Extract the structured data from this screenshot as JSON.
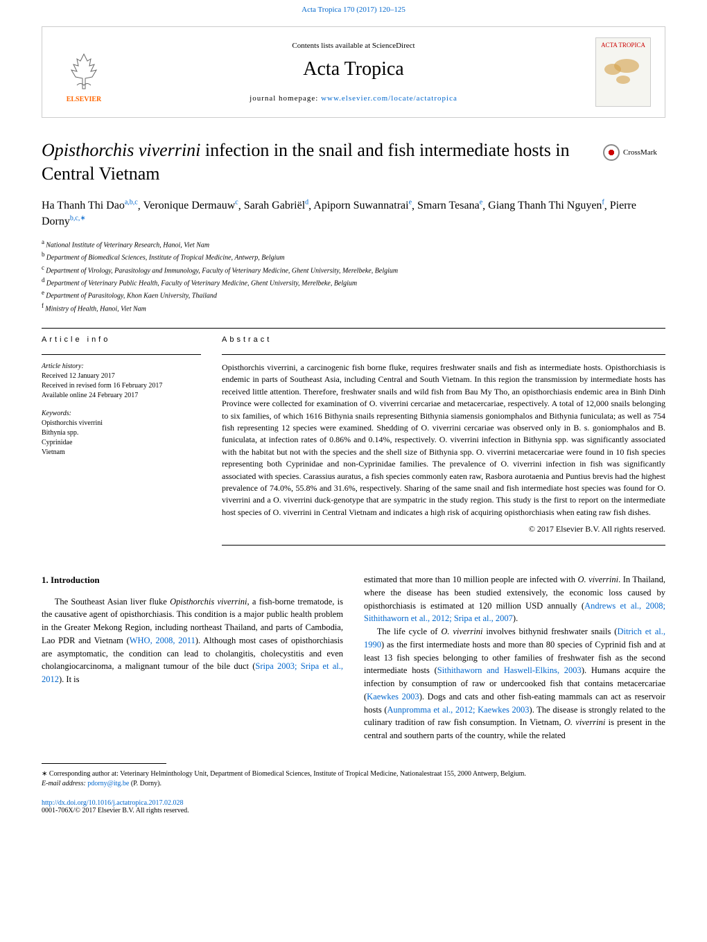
{
  "header": {
    "citation": "Acta Tropica 170 (2017) 120–125",
    "contents_available": "Contents lists available at ",
    "sciencedirect": "ScienceDirect",
    "journal_name": "Acta Tropica",
    "homepage_label": "journal homepage: ",
    "homepage_url": "www.elsevier.com/locate/actatropica",
    "elsevier_label": "ELSEVIER",
    "cover_title": "ACTA TROPICA"
  },
  "crossmark": {
    "label": "CrossMark"
  },
  "article": {
    "title_italic": "Opisthorchis viverrini",
    "title_rest": " infection in the snail and fish intermediate hosts in Central Vietnam",
    "authors_html": "Ha Thanh Thi Dao",
    "authors": [
      {
        "name": "Ha Thanh Thi Dao",
        "sup": "a,b,c"
      },
      {
        "name": "Veronique Dermauw",
        "sup": "c"
      },
      {
        "name": "Sarah Gabriël",
        "sup": "d"
      },
      {
        "name": "Apiporn Suwannatrai",
        "sup": "e"
      },
      {
        "name": "Smarn Tesana",
        "sup": "e"
      },
      {
        "name": "Giang Thanh Thi Nguyen",
        "sup": "f"
      },
      {
        "name": "Pierre Dorny",
        "sup": "b,c,∗"
      }
    ],
    "affiliations": [
      {
        "sup": "a",
        "text": "National Institute of Veterinary Research, Hanoi, Viet Nam"
      },
      {
        "sup": "b",
        "text": "Department of Biomedical Sciences, Institute of Tropical Medicine, Antwerp, Belgium"
      },
      {
        "sup": "c",
        "text": "Department of Virology, Parasitology and Immunology, Faculty of Veterinary Medicine, Ghent University, Merelbeke, Belgium"
      },
      {
        "sup": "d",
        "text": "Department of Veterinary Public Health, Faculty of Veterinary Medicine, Ghent University, Merelbeke, Belgium"
      },
      {
        "sup": "e",
        "text": "Department of Parasitology, Khon Kaen University, Thailand"
      },
      {
        "sup": "f",
        "text": "Ministry of Health, Hanoi, Viet Nam"
      }
    ]
  },
  "info": {
    "head": "article info",
    "history_label": "Article history:",
    "received": "Received 12 January 2017",
    "revised": "Received in revised form 16 February 2017",
    "online": "Available online 24 February 2017",
    "keywords_label": "Keywords:",
    "keywords": [
      "Opisthorchis viverrini",
      "Bithynia spp.",
      "Cyprinidae",
      "Vietnam"
    ]
  },
  "abstract": {
    "head": "abstract",
    "text": "Opisthorchis viverrini, a carcinogenic fish borne fluke, requires freshwater snails and fish as intermediate hosts. Opisthorchiasis is endemic in parts of Southeast Asia, including Central and South Vietnam. In this region the transmission by intermediate hosts has received little attention. Therefore, freshwater snails and wild fish from Bau My Tho, an opisthorchiasis endemic area in Binh Dinh Province were collected for examination of O. viverrini cercariae and metacercariae, respectively. A total of 12,000 snails belonging to six families, of which 1616 Bithynia snails representing Bithynia siamensis goniomphalos and Bithynia funiculata; as well as 754 fish representing 12 species were examined. Shedding of O. viverrini cercariae was observed only in B. s. goniomphalos and B. funiculata, at infection rates of 0.86% and 0.14%, respectively. O. viverrini infection in Bithynia spp. was significantly associated with the habitat but not with the species and the shell size of Bithynia spp. O. viverrini metacercariae were found in 10 fish species representing both Cyprinidae and non-Cyprinidae families. The prevalence of O. viverrini infection in fish was significantly associated with species. Carassius auratus, a fish species commonly eaten raw, Rasbora aurotaenia and Puntius brevis had the highest prevalence of 74.0%, 55.8% and 31.6%, respectively. Sharing of the same snail and fish intermediate host species was found for O. viverrini and a O. viverrini duck-genotype that are sympatric in the study region. This study is the first to report on the intermediate host species of O. viverrini in Central Vietnam and indicates a high risk of acquiring opisthorchiasis when eating raw fish dishes.",
    "copyright": "© 2017 Elsevier B.V. All rights reserved."
  },
  "body": {
    "intro_head": "1. Introduction",
    "col1_p1a": "The Southeast Asian liver fluke ",
    "col1_p1b": "Opisthorchis viverrini",
    "col1_p1c": ", a fish-borne trematode, is the causative agent of opisthorchiasis. This condition is a major public health problem in the Greater Mekong Region, including northeast Thailand, and parts of Cambodia, Lao PDR and Vietnam (",
    "col1_ref1": "WHO, 2008, 2011",
    "col1_p1d": "). Although most cases of opisthorchiasis are asymptomatic, the condition can lead to cholangitis, cholecystitis and even cholangiocarcinoma, a malignant tumour of the bile duct (",
    "col1_ref2": "Sripa 2003; Sripa et al., 2012",
    "col1_p1e": "). It is",
    "col2_p1a": "estimated that more than 10 million people are infected with ",
    "col2_p1b": "O. viverrini",
    "col2_p1c": ". In Thailand, where the disease has been studied extensively, the economic loss caused by opisthorchiasis is estimated at 120 million USD annually (",
    "col2_ref1": "Andrews et al., 2008; Sithithaworn et al., 2012; Sripa et al., 2007",
    "col2_p1d": ").",
    "col2_p2a": "The life cycle of ",
    "col2_p2b": "O. viverrini",
    "col2_p2c": " involves bithynid freshwater snails (",
    "col2_ref2": "Ditrich et al., 1990",
    "col2_p2d": ") as the first intermediate hosts and more than 80 species of Cyprinid fish and at least 13 fish species belonging to other families of freshwater fish as the second intermediate hosts (",
    "col2_ref3": "Sithithaworn and Haswell-Elkins, 2003",
    "col2_p2e": "). Humans acquire the infection by consumption of raw or undercooked fish that contains metacercariae (",
    "col2_ref4": "Kaewkes 2003",
    "col2_p2f": "). Dogs and cats and other fish-eating mammals can act as reservoir hosts (",
    "col2_ref5": "Aunpromma et al., 2012; Kaewkes 2003",
    "col2_p2g": "). The disease is strongly related to the culinary tradition of raw fish consumption. In Vietnam, ",
    "col2_p2h": "O. viverrini",
    "col2_p2i": " is present in the central and southern parts of the country, while the related"
  },
  "footnote": {
    "corr": "∗ Corresponding author at: Veterinary Helminthology Unit, Department of Biomedical Sciences, Institute of Tropical Medicine, Nationalestraat 155, 2000 Antwerp, Belgium.",
    "email_label": "E-mail address: ",
    "email": "pdorny@itg.be",
    "email_suffix": " (P. Dorny)."
  },
  "doi": {
    "url": "http://dx.doi.org/10.1016/j.actatropica.2017.02.028",
    "issn": "0001-706X/© 2017 Elsevier B.V. All rights reserved."
  },
  "colors": {
    "link": "#0066cc",
    "elsevier_orange": "#ff6600",
    "cover_red": "#c00000"
  }
}
